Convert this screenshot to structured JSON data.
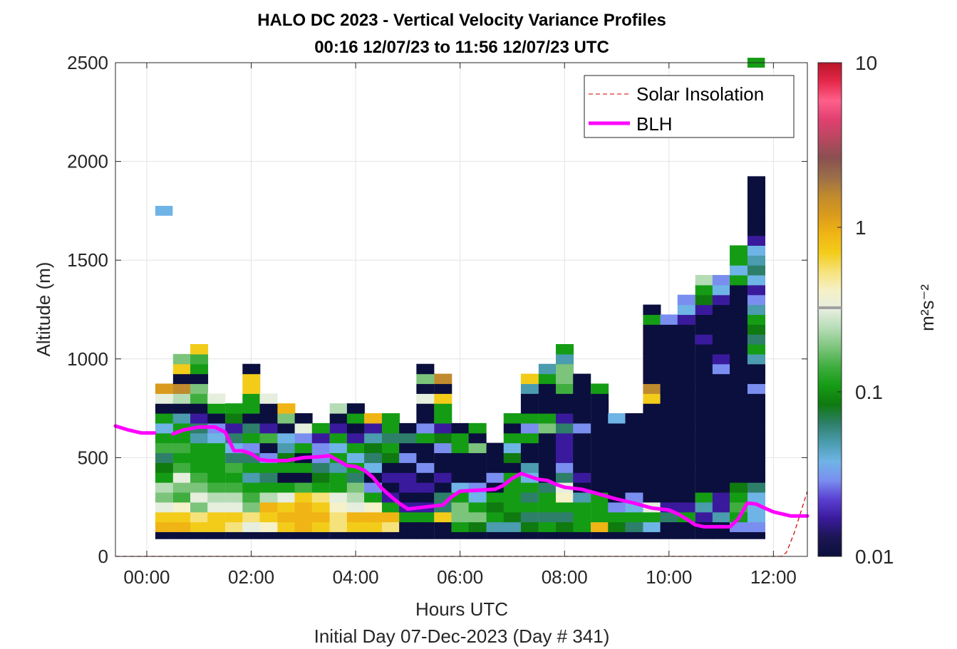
{
  "chart_data": {
    "type": "heatmap",
    "title_line1": "HALO DC 2023 - Vertical Velocity Variance Profiles",
    "title_line2": "00:16 12/07/23 to 11:56 12/07/23  UTC",
    "xlabel": "Hours UTC",
    "xlabel2": "Initial Day 07-Dec-2023 (Day # 341)",
    "ylabel": "Altitude (m)",
    "xlim_hours": [
      -0.6,
      12.65
    ],
    "ylim": [
      0,
      2500
    ],
    "x_ticks": [
      {
        "value": 0,
        "label": "00:00"
      },
      {
        "value": 2,
        "label": "02:00"
      },
      {
        "value": 4,
        "label": "04:00"
      },
      {
        "value": 6,
        "label": "06:00"
      },
      {
        "value": 8,
        "label": "08:00"
      },
      {
        "value": 10,
        "label": "10:00"
      },
      {
        "value": 12,
        "label": "12:00"
      }
    ],
    "y_ticks": [
      {
        "value": 0,
        "label": "0"
      },
      {
        "value": 500,
        "label": "500"
      },
      {
        "value": 1000,
        "label": "1000"
      },
      {
        "value": 1500,
        "label": "1500"
      },
      {
        "value": 2000,
        "label": "2000"
      },
      {
        "value": 2500,
        "label": "2500"
      }
    ],
    "grid": true,
    "legend_position": "top-right",
    "legend": [
      {
        "name": "Solar Insolation",
        "style": "dashed",
        "color": "#cc0000"
      },
      {
        "name": "BLH",
        "style": "solid",
        "color": "#ff00ff"
      }
    ],
    "colorbar": {
      "label": "m²s⁻²",
      "scale": "log",
      "range": [
        0.01,
        10
      ],
      "ticks": [
        {
          "value": 10,
          "label": "10"
        },
        {
          "value": 1,
          "label": "1"
        },
        {
          "value": 0.1,
          "label": "0.1"
        },
        {
          "value": 0.01,
          "label": "0.01"
        }
      ],
      "colors": [
        "#0b0f3d",
        "#1c1654",
        "#3a1a9c",
        "#5a3fd0",
        "#7a8ef0",
        "#6fb4e6",
        "#4a9cae",
        "#2e7f6a",
        "#0f7a0f",
        "#159c15",
        "#3fae3f",
        "#7cc47c",
        "#b5dcb5",
        "#e6eede",
        "#f5f1c8",
        "#f6e27a",
        "#f3cc1a",
        "#f0b415",
        "#d99b1c",
        "#c08a2e",
        "#9a6d4a",
        "#8a5050",
        "#b84860",
        "#e04070",
        "#ff5f8a",
        "#e6284a",
        "#b81628"
      ]
    },
    "heatmap": {
      "dt_hours": 0.3333,
      "dz_m": 50,
      "columns": [
        {
          "t": 0.33,
          "z0": 100,
          "v": [
            0.01,
            0.8,
            0.6,
            0.35,
            0.2,
            0.25,
            0.12,
            0.08,
            0.07,
            0.15,
            0.12,
            0.04,
            0.12,
            0.01,
            0.3,
            1.2
          ]
        },
        {
          "t": 0.67,
          "z0": 100,
          "v": [
            0.01,
            0.8,
            0.7,
            0.4,
            0.15,
            0.2,
            0.3,
            0.15,
            0.12,
            0.15,
            0.12,
            0.1,
            0.05,
            0.01,
            0.25,
            1.5,
            0.01,
            0.7,
            0.2
          ]
        },
        {
          "t": 1.0,
          "z0": 100,
          "v": [
            0.01,
            0.7,
            0.5,
            0.2,
            0.3,
            0.18,
            0.15,
            0.12,
            0.1,
            0.1,
            0.05,
            0.06,
            0.02,
            0.01,
            0.15,
            0.2,
            0.01,
            0.1,
            0.15,
            0.7
          ]
        },
        {
          "t": 1.33,
          "z0": 100,
          "v": [
            0.01,
            0.6,
            0.7,
            0.35,
            0.25,
            0.15,
            0.12,
            0.1,
            0.12,
            0.1,
            0.04,
            0.03,
            0.01,
            0.12,
            0.3
          ]
        },
        {
          "t": 1.67,
          "z0": 100,
          "v": [
            0.01,
            0.5,
            0.6,
            0.3,
            0.25,
            0.15,
            0.12,
            0.13,
            0.06,
            0.04,
            0.07,
            0.02,
            0.08,
            0.12
          ]
        },
        {
          "t": 2.0,
          "z0": 100,
          "v": [
            0.01,
            0.35,
            0.5,
            0.2,
            0.15,
            0.1,
            0.05,
            0.1,
            0.06,
            0.03,
            0.12,
            0.06,
            0.01,
            0.12,
            0.1,
            0.7,
            0.6,
            0.01
          ]
        },
        {
          "t": 2.33,
          "z0": 100,
          "v": [
            0.01,
            0.4,
            0.7,
            0.8,
            0.25,
            0.1,
            0.07,
            0.12,
            0.03,
            0.01,
            0.15,
            0.02,
            0.01,
            0.01,
            0.35
          ]
        },
        {
          "t": 2.67,
          "z0": 100,
          "v": [
            0.01,
            0.7,
            0.8,
            0.6,
            0.35,
            0.12,
            0.01,
            0.1,
            0.08,
            0.05,
            0.04,
            0.01,
            0.2,
            0.8
          ]
        },
        {
          "t": 3.0,
          "z0": 100,
          "v": [
            0.01,
            0.8,
            0.9,
            0.9,
            0.6,
            0.15,
            0.01,
            0.1,
            0.01,
            0.1,
            0.03,
            0.3,
            0.01
          ]
        },
        {
          "t": 3.33,
          "z0": 100,
          "v": [
            0.01,
            0.7,
            0.8,
            0.7,
            0.5,
            0.1,
            0.08,
            0.06,
            0.03,
            0.03,
            0.02,
            0.1
          ]
        },
        {
          "t": 3.67,
          "z0": 100,
          "v": [
            0.01,
            0.5,
            0.5,
            0.4,
            0.3,
            0.12,
            0.1,
            0.05,
            0.1,
            0.04,
            0.1,
            0.02,
            0.01,
            0.25
          ]
        },
        {
          "t": 4.0,
          "z0": 100,
          "v": [
            0.01,
            0.6,
            0.8,
            0.3,
            0.25,
            0.2,
            0.06,
            0.1,
            0.04,
            0.12,
            0.02,
            0.01,
            0.1,
            0.01
          ]
        },
        {
          "t": 4.33,
          "z0": 100,
          "v": [
            0.01,
            0.6,
            0.9,
            0.4,
            0.1,
            0.03,
            0.01,
            0.04,
            0.06,
            0.08,
            0.05,
            0.02,
            0.9
          ]
        },
        {
          "t": 4.67,
          "z0": 100,
          "v": [
            0.01,
            0.5,
            0.9,
            0.12,
            0.02,
            0.01,
            0.02,
            0.01,
            0.08,
            0.1,
            0.06,
            0.1,
            0.1
          ]
        },
        {
          "t": 5.0,
          "z0": 100,
          "v": [
            0.01,
            0.01,
            0.1,
            0.02,
            0.01,
            0.02,
            0.02,
            0.01,
            0.03,
            0.01,
            0.06,
            0.01
          ]
        },
        {
          "t": 5.33,
          "z0": 100,
          "v": [
            0.01,
            0.01,
            0.1,
            0.02,
            0.01,
            0.02,
            0.01,
            0.03,
            0.01,
            0.01,
            0.1,
            0.03,
            0.01,
            0.01,
            0.3,
            0.01,
            0.2,
            0.01
          ]
        },
        {
          "t": 5.67,
          "z0": 100,
          "v": [
            0.01,
            0.01,
            0.6,
            0.06,
            0.06,
            0.01,
            0.02,
            0.01,
            0.01,
            0.03,
            0.08,
            0.02,
            0.12,
            0.12,
            0.6,
            0.01,
            1.5
          ]
        },
        {
          "t": 6.0,
          "z0": 100,
          "v": [
            0.01,
            0.1,
            0.2,
            0.2,
            0.1,
            0.04,
            0.01,
            0.01,
            0.01,
            0.1,
            0.1,
            0.01
          ]
        },
        {
          "t": 6.33,
          "z0": 100,
          "v": [
            0.01,
            0.08,
            0.2,
            0.1,
            0.04,
            0.03,
            0.01,
            0.01,
            0.01,
            0.2,
            0.01,
            0.1
          ]
        },
        {
          "t": 6.67,
          "z0": 100,
          "v": [
            0.01,
            0.05,
            0.1,
            0.08,
            0.1,
            0.01,
            0.03,
            0.01,
            0.01,
            0.01
          ]
        },
        {
          "t": 7.0,
          "z0": 100,
          "v": [
            0.01,
            0.05,
            0.08,
            0.1,
            0.12,
            0.1,
            0.1,
            0.01,
            0.08,
            0.04,
            0.1,
            0.01,
            0.1
          ]
        },
        {
          "t": 7.33,
          "z0": 100,
          "v": [
            0.01,
            0.08,
            0.07,
            0.12,
            0.06,
            0.1,
            0.04,
            0.05,
            0.01,
            0.01,
            0.1,
            0.03,
            0.1,
            0.01,
            0.01,
            0.05,
            0.7
          ]
        },
        {
          "t": 7.67,
          "z0": 100,
          "v": [
            0.01,
            0.1,
            0.06,
            0.1,
            0.1,
            0.06,
            0.01,
            0.01,
            0.01,
            0.01,
            0.01,
            0.2,
            0.1,
            0.01,
            0.01,
            0.01,
            0.1,
            0.05
          ]
        },
        {
          "t": 8.0,
          "z0": 100,
          "v": [
            0.01,
            0.08,
            0.07,
            0.1,
            0.4,
            0.3,
            0.07,
            0.03,
            0.02,
            0.02,
            0.02,
            0.07,
            0.02,
            0.01,
            0.01,
            0.15,
            0.2,
            0.2,
            0.05,
            0.1
          ]
        },
        {
          "t": 8.33,
          "z0": 100,
          "v": [
            0.01,
            0.1,
            0.1,
            0.1,
            0.05,
            0.01,
            0.02,
            0.01,
            0.01,
            0.01,
            0.01,
            0.03,
            0.01,
            0.01,
            0.01,
            0.01,
            0.01
          ]
        },
        {
          "t": 8.67,
          "z0": 100,
          "v": [
            0.01,
            0.8,
            0.1,
            0.12,
            0.1,
            0.01,
            0.01,
            0.01,
            0.01,
            0.01,
            0.01,
            0.01,
            0.01,
            0.01,
            0.01,
            0.1
          ]
        },
        {
          "t": 9.0,
          "z0": 100,
          "v": [
            0.01,
            0.08,
            0.12,
            0.03,
            0.01,
            0.01,
            0.01,
            0.01,
            0.01,
            0.01,
            0.01,
            0.01,
            0.04
          ]
        },
        {
          "t": 9.33,
          "z0": 100,
          "v": [
            0.01,
            0.06,
            0.1,
            0.04,
            0.03,
            0.01,
            0.01,
            0.01,
            0.01,
            0.01,
            0.01,
            0.01,
            0.01
          ]
        },
        {
          "t": 9.67,
          "z0": 100,
          "v": [
            0.01,
            0.04,
            0.1,
            0.3,
            0.01,
            0.01,
            0.01,
            0.01,
            0.01,
            0.01,
            0.01,
            0.01,
            0.01,
            0.01,
            0.7,
            1.5,
            0.01,
            0.01,
            0.01,
            0.01,
            0.01,
            0.01,
            0.1,
            0.01
          ]
        },
        {
          "t": 10.0,
          "z0": 100,
          "v": [
            0.01,
            0.01,
            0.06,
            0.02,
            0.01,
            0.01,
            0.01,
            0.01,
            0.01,
            0.01,
            0.01,
            0.01,
            0.01,
            0.01,
            0.01,
            0.01,
            0.01,
            0.01,
            0.01,
            0.01,
            0.01,
            0.01,
            0.03
          ]
        },
        {
          "t": 10.33,
          "z0": 100,
          "v": [
            0.01,
            0.01,
            0.1,
            0.02,
            0.01,
            0.01,
            0.01,
            0.01,
            0.01,
            0.01,
            0.01,
            0.01,
            0.01,
            0.01,
            0.01,
            0.01,
            0.01,
            0.01,
            0.01,
            0.01,
            0.01,
            0.01,
            0.02,
            0.04,
            0.03
          ]
        },
        {
          "t": 10.67,
          "z0": 100,
          "v": [
            0.01,
            0.01,
            0.02,
            0.05,
            0.1,
            0.01,
            0.01,
            0.01,
            0.01,
            0.01,
            0.01,
            0.01,
            0.01,
            0.01,
            0.01,
            0.01,
            0.01,
            0.01,
            0.01,
            0.01,
            0.02,
            0.01,
            0.01,
            0.02,
            0.08,
            0.1,
            0.25
          ]
        },
        {
          "t": 11.0,
          "z0": 100,
          "v": [
            0.01,
            0.01,
            0.05,
            0.02,
            0.02,
            0.01,
            0.01,
            0.01,
            0.01,
            0.01,
            0.01,
            0.01,
            0.01,
            0.01,
            0.01,
            0.01,
            0.01,
            0.03,
            0.02,
            0.01,
            0.01,
            0.01,
            0.01,
            0.01,
            0.02,
            0.04,
            0.03
          ]
        },
        {
          "t": 11.33,
          "z0": 100,
          "v": [
            0.01,
            0.03,
            0.1,
            0.15,
            0.1,
            0.08,
            0.01,
            0.01,
            0.01,
            0.01,
            0.01,
            0.01,
            0.01,
            0.01,
            0.01,
            0.01,
            0.01,
            0.01,
            0.01,
            0.01,
            0.01,
            0.01,
            0.01,
            0.01,
            0.01,
            0.01,
            0.1,
            0.04,
            0.12,
            0.12
          ]
        },
        {
          "t": 11.67,
          "z0": 100,
          "v": [
            0.01,
            0.03,
            0.04,
            0.04,
            0.04,
            0.06,
            0.01,
            0.01,
            0.01,
            0.01,
            0.01,
            0.01,
            0.01,
            0.01,
            0.01,
            0.03,
            0.01,
            0.01,
            0.05,
            0.1,
            0.06,
            0.08,
            0.1,
            0.05,
            0.03,
            0.02,
            0.04,
            0.06,
            0.05,
            0.04,
            0.02,
            0.01,
            0.01,
            0.01,
            0.01,
            0.01,
            0.01
          ]
        }
      ],
      "isolated_cells": [
        {
          "t": 0.33,
          "z": 1750,
          "v": 0.04
        },
        {
          "t": 11.67,
          "z": 2500,
          "v": 0.1
        }
      ]
    },
    "blh": {
      "x": [
        -0.6,
        -0.35,
        -0.1,
        0.15,
        0.3,
        0.5,
        0.7,
        1.0,
        1.3,
        1.5,
        1.67,
        1.83,
        2.0,
        2.17,
        2.33,
        2.5,
        2.67,
        3.0,
        3.33,
        3.5,
        3.67,
        3.83,
        4.0,
        4.17,
        4.33,
        4.5,
        4.67,
        4.83,
        5.0,
        5.33,
        5.67,
        5.83,
        6.0,
        6.33,
        6.67,
        6.83,
        7.0,
        7.17,
        7.33,
        7.5,
        7.67,
        7.83,
        8.0,
        8.33,
        8.67,
        9.0,
        9.33,
        9.67,
        10.0,
        10.17,
        10.33,
        10.5,
        10.67,
        11.0,
        11.17,
        11.33,
        11.5,
        11.67,
        11.83,
        12.0,
        12.33,
        12.65
      ],
      "y": [
        660,
        640,
        625,
        625,
        null,
        620,
        640,
        655,
        655,
        630,
        535,
        535,
        520,
        490,
        485,
        485,
        485,
        500,
        505,
        510,
        485,
        460,
        455,
        435,
        400,
        345,
        305,
        270,
        240,
        250,
        260,
        300,
        330,
        335,
        340,
        360,
        395,
        420,
        405,
        390,
        385,
        365,
        350,
        340,
        315,
        290,
        270,
        245,
        235,
        215,
        190,
        160,
        150,
        150,
        150,
        190,
        270,
        265,
        245,
        225,
        205,
        205
      ]
    },
    "solar": {
      "x": [
        -0.6,
        12.15,
        12.25,
        12.4,
        12.65
      ],
      "y": [
        0,
        0,
        20,
        120,
        330
      ]
    }
  }
}
